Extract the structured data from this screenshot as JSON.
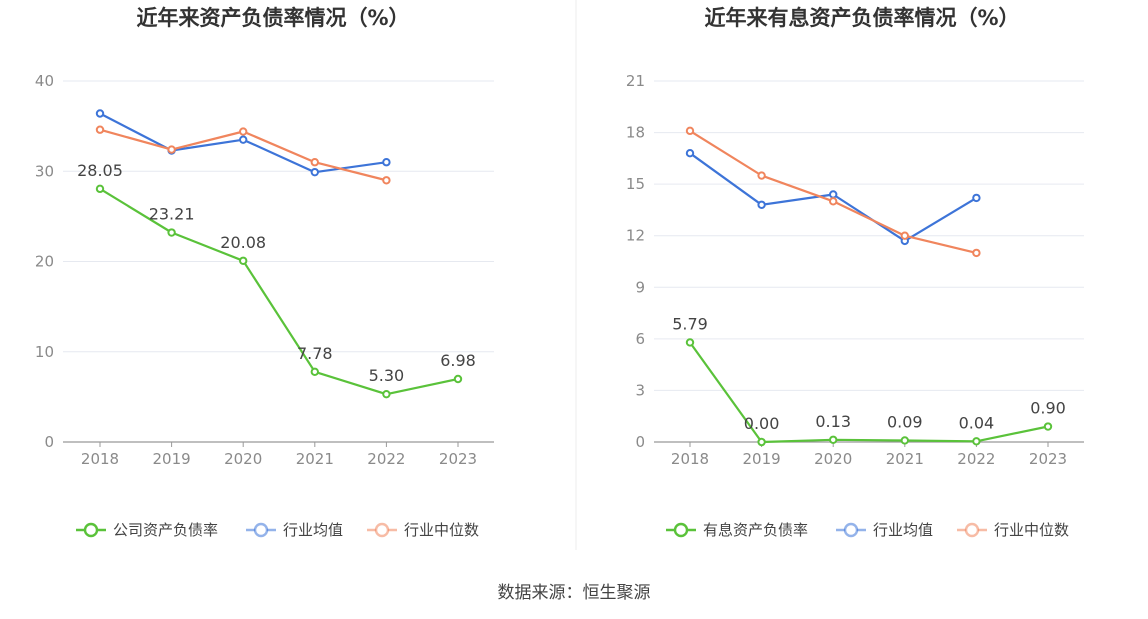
{
  "source_text": "数据来源：恒生聚源",
  "chart_data": [
    {
      "type": "line",
      "title": "近年来资产负债率情况（%）",
      "xlabel": "",
      "ylabel": "",
      "categories": [
        "2018",
        "2019",
        "2020",
        "2021",
        "2022",
        "2023"
      ],
      "ylim": [
        0,
        40
      ],
      "yticks": [
        0,
        10,
        20,
        30,
        40
      ],
      "ytick_labels": [
        "0",
        "10",
        "20",
        "30",
        "40"
      ],
      "grid": true,
      "legend_position": "bottom",
      "series": [
        {
          "name": "公司资产负债率",
          "color": "#5ac23a",
          "values": [
            28.05,
            23.21,
            20.08,
            7.78,
            5.3,
            6.98
          ],
          "labels": [
            "28.05",
            "23.21",
            "20.08",
            "7.78",
            "5.30",
            "6.98"
          ]
        },
        {
          "name": "行业均值",
          "color": "#3d74d8",
          "values": [
            36.4,
            32.3,
            33.5,
            29.9,
            31.0,
            null
          ]
        },
        {
          "name": "行业中位数",
          "color": "#f0855d",
          "values": [
            34.6,
            32.4,
            34.4,
            31.0,
            29.0,
            null
          ]
        }
      ]
    },
    {
      "type": "line",
      "title": "近年来有息资产负债率情况（%）",
      "xlabel": "",
      "ylabel": "",
      "categories": [
        "2018",
        "2019",
        "2020",
        "2021",
        "2022",
        "2023"
      ],
      "ylim": [
        0,
        21
      ],
      "yticks": [
        0,
        3,
        6,
        9,
        12,
        15,
        18,
        21
      ],
      "ytick_labels": [
        "0",
        "3",
        "6",
        "9",
        "12",
        "15",
        "18",
        "21"
      ],
      "grid": true,
      "legend_position": "bottom",
      "series": [
        {
          "name": "有息资产负债率",
          "color": "#5ac23a",
          "values": [
            5.79,
            0.0,
            0.13,
            0.09,
            0.04,
            0.9
          ],
          "labels": [
            "5.79",
            "0.00",
            "0.13",
            "0.09",
            "0.04",
            "0.90"
          ]
        },
        {
          "name": "行业均值",
          "color": "#3d74d8",
          "values": [
            16.8,
            13.8,
            14.4,
            11.7,
            14.2,
            null
          ]
        },
        {
          "name": "行业中位数",
          "color": "#f0855d",
          "values": [
            18.1,
            15.5,
            14.0,
            12.0,
            11.0,
            null
          ]
        }
      ]
    }
  ]
}
